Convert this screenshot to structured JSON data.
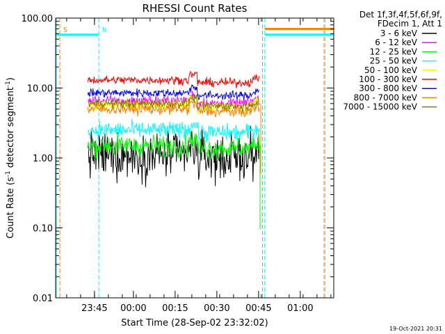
{
  "chart_data": {
    "type": "line",
    "title": "RHESSI Count Rates",
    "xlabel": "Start Time (28-Sep-02 23:32:02)",
    "ylabel_main": "Count Rate (s",
    "ylabel_exp": "-1",
    "ylabel_tail": " detector segment",
    "ylabel_exp2": "-1",
    "ylabel_close": ")",
    "y_scale": "log",
    "ylim": [
      0.01,
      100.0
    ],
    "y_ticks": [
      {
        "value": 0.01,
        "label": "0.01"
      },
      {
        "value": 0.1,
        "label": "0.10"
      },
      {
        "value": 1.0,
        "label": "1.00"
      },
      {
        "value": 10.0,
        "label": "10.00"
      },
      {
        "value": 100.0,
        "label": "100.00"
      }
    ],
    "xlim_minutes": [
      0,
      100
    ],
    "x_ticks": [
      {
        "minute": 13.97,
        "label": "23:45"
      },
      {
        "minute": 27.97,
        "label": "00:00"
      },
      {
        "minute": 42.97,
        "label": "00:15"
      },
      {
        "minute": 57.97,
        "label": "00:30"
      },
      {
        "minute": 72.97,
        "label": "00:45"
      },
      {
        "minute": 87.97,
        "label": "01:00"
      }
    ],
    "legend_header": [
      "Det 1f,3f,4f,5f,6f,9f,",
      "FDecim 1, Att 1"
    ],
    "legend_placement": "top-right outside",
    "series": [
      {
        "name": "3 - 6 keV",
        "color": "#000000",
        "level": 1.1,
        "noise": 0.32
      },
      {
        "name": "6 - 12 keV",
        "color": "#ff00ff",
        "level": 6.5,
        "noise": 0.08
      },
      {
        "name": "12 - 25 keV",
        "color": "#00ff00",
        "level": 1.5,
        "noise": 0.15
      },
      {
        "name": "25 - 50 keV",
        "color": "#00ffff",
        "level": 2.5,
        "noise": 0.12
      },
      {
        "name": "50 - 100 keV",
        "color": "#ffff00",
        "level": 5.8,
        "noise": 0.08
      },
      {
        "name": "100 - 300 keV",
        "color": "#ff0000",
        "level": 13.0,
        "noise": 0.06
      },
      {
        "name": "300 - 800 keV",
        "color": "#0000ff",
        "level": 8.5,
        "noise": 0.06
      },
      {
        "name": "800 - 7000 keV",
        "color": "#ff8000",
        "level": 5.0,
        "noise": 0.08
      },
      {
        "name": "7000 - 15000 keV",
        "color": "#808000",
        "level": 6.0,
        "noise": 0.06
      }
    ],
    "data_window_minutes": [
      11.6,
      73.2
    ],
    "saa_intervals": [
      {
        "start_min": 0,
        "end_min": 15.5,
        "level": 58,
        "color": "#00ffff"
      },
      {
        "start_min": 75.2,
        "end_min": 100,
        "level": 58,
        "color": "#00ffff"
      },
      {
        "start_min": 75.2,
        "end_min": 100,
        "level": 70,
        "color": "#ff8000"
      }
    ],
    "markers": [
      {
        "label": "S",
        "minute": 1.5,
        "color": "#ff8000"
      },
      {
        "label": "N",
        "minute": 15.5,
        "color": "#00ffff"
      }
    ],
    "night_lines_minutes": [
      {
        "minute": 0.3,
        "color": "#00ffff"
      },
      {
        "minute": 1.5,
        "color": "#ff8000"
      },
      {
        "minute": 15.5,
        "color": "#00ffff"
      },
      {
        "minute": 74.4,
        "color": "#ff8000"
      },
      {
        "minute": 75.2,
        "color": "#00ffff"
      },
      {
        "minute": 96.5,
        "color": "#ff8000"
      },
      {
        "minute": 96.9,
        "color": "#00ffff"
      }
    ],
    "timestamp": "19-Oct-2021 20:31"
  }
}
